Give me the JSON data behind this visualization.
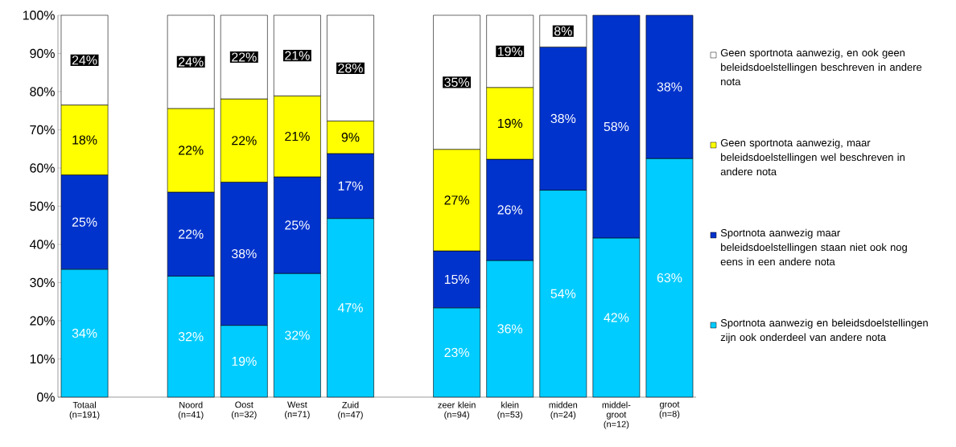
{
  "chart_data": {
    "type": "bar",
    "stacked": true,
    "categories": [
      "Totaal (n=191)",
      null,
      "Noord (n=41)",
      "Oost (n=32)",
      "West (n=71)",
      "Zuid (n=47)",
      null,
      "zeer klein (n=94)",
      "klein (n=53)",
      "midden (n=24)",
      "middel-groot (n=12)",
      "groot (n=8)"
    ],
    "series": [
      {
        "name": "Sportnota aanwezig en beleidsdoelstellingen zijn ook onderdeel van andere nota",
        "color": "#00ccff",
        "values": [
          33.5,
          null,
          31.7,
          18.8,
          32.4,
          46.8,
          null,
          23.4,
          35.8,
          54.2,
          41.7,
          62.5
        ],
        "value_labels": [
          "34%",
          null,
          "32%",
          "19%",
          "32%",
          "47%",
          null,
          "23%",
          "36%",
          "54%",
          "42%",
          "63%"
        ]
      },
      {
        "name": "Sportnota aanwezig maar beleidsdoelstellingen staan niet ook nog eens in een andere nota",
        "color": "#0033cc",
        "values": [
          24.7,
          null,
          22.0,
          37.5,
          25.3,
          17.0,
          null,
          14.9,
          26.5,
          37.5,
          58.3,
          37.5
        ],
        "value_labels": [
          "25%",
          null,
          "22%",
          "38%",
          "25%",
          "17%",
          null,
          "15%",
          "26%",
          "38%",
          "58%",
          "38%"
        ]
      },
      {
        "name": "Geen sportnota aanwezig, maar beleidsdoelstellingen wel beschreven in andere nota",
        "color": "#ffff00",
        "values": [
          18.3,
          null,
          21.9,
          21.8,
          21.2,
          8.5,
          null,
          26.6,
          18.8,
          0,
          0,
          0
        ],
        "value_labels": [
          "18%",
          null,
          "22%",
          "22%",
          "21%",
          "9%",
          null,
          "27%",
          "19%",
          null,
          null,
          null
        ]
      },
      {
        "name": "Geen sportnota aanwezig, en ook geen beleidsdoelstellingen beschreven in andere nota",
        "color": "#ffffff",
        "values": [
          23.5,
          null,
          24.4,
          21.9,
          21.1,
          27.7,
          null,
          35.1,
          18.9,
          8.3,
          0,
          0
        ],
        "value_labels": [
          "24%",
          null,
          "24%",
          "22%",
          "21%",
          "28%",
          null,
          "35%",
          "19%",
          "8%",
          null,
          null
        ]
      }
    ],
    "ylim": [
      0,
      100
    ],
    "yticks": [
      {
        "value": 0,
        "label": "0%"
      },
      {
        "value": 10,
        "label": "10%"
      },
      {
        "value": 20,
        "label": "20%"
      },
      {
        "value": 30,
        "label": "30%"
      },
      {
        "value": 40,
        "label": "40%"
      },
      {
        "value": 50,
        "label": "50%"
      },
      {
        "value": 60,
        "label": "60%"
      },
      {
        "value": 70,
        "label": "70%"
      },
      {
        "value": 80,
        "label": "80%"
      },
      {
        "value": 90,
        "label": "90%"
      },
      {
        "value": 100,
        "label": "100%"
      }
    ],
    "legend": "right"
  }
}
